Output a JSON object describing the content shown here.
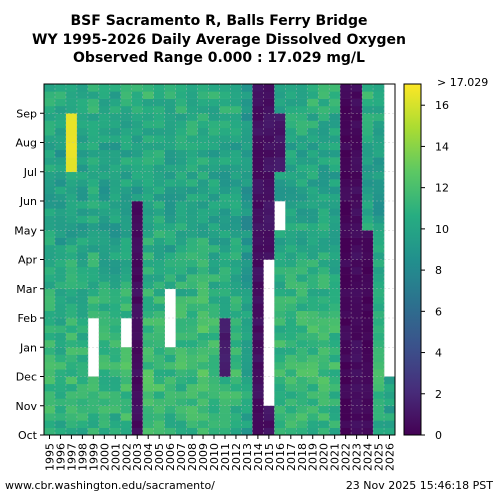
{
  "chart_data": {
    "type": "heatmap",
    "title_lines": [
      "BSF Sacramento R, Balls Ferry Bridge",
      "WY 1995-2026 Daily Average Dissolved Oxygen",
      "Observed Range 0.000 : 17.029 mg/L"
    ],
    "x_categories": [
      "1995",
      "1996",
      "1997",
      "1998",
      "1999",
      "2000",
      "2001",
      "2002",
      "2003",
      "2004",
      "2005",
      "2006",
      "2007",
      "2008",
      "2009",
      "2010",
      "2011",
      "2012",
      "2013",
      "2014",
      "2015",
      "2016",
      "2017",
      "2018",
      "2019",
      "2020",
      "2021",
      "2022",
      "2023",
      "2024",
      "2025",
      "2026"
    ],
    "y_months": [
      "Oct",
      "Nov",
      "Dec",
      "Jan",
      "Feb",
      "Mar",
      "Apr",
      "May",
      "Jun",
      "Jul",
      "Aug",
      "Sep"
    ],
    "xlabel": "",
    "ylabel": "",
    "colorbar": {
      "min": 0,
      "max": 17.029,
      "ticks": [
        0,
        2,
        4,
        6,
        8,
        10,
        12,
        14,
        16
      ],
      "top_label": "> 17.029",
      "colormap": "viridis"
    },
    "typical_value_by_water_year": [
      10.6,
      10.2,
      10.6,
      10.3,
      10.8,
      10.4,
      10.2,
      10.8,
      10.6,
      10.9,
      10.9,
      10.4,
      10.6,
      10.8,
      11.1,
      10.7,
      10.6,
      10.5,
      9.5,
      3.0,
      2.8,
      10.5,
      10.6,
      10.7,
      10.8,
      10.8,
      10.6,
      1.0,
      1.5,
      10.7,
      10.3,
      9.5
    ],
    "low_do_periods": [
      {
        "water_year": "2014",
        "months": "Oct-Sep",
        "approx_value": 0.7
      },
      {
        "water_year": "2015",
        "months": "Oct-Sep",
        "approx_value": 0.8
      },
      {
        "water_year": "2022",
        "months": "Oct-Sep",
        "approx_value": 0.3
      },
      {
        "water_year": "2023",
        "months": "Oct-Sep",
        "approx_value": 0.5
      },
      {
        "water_year": "2003",
        "months": "Oct-May",
        "approx_value": 0.6
      },
      {
        "water_year": "2013",
        "months": "Apr-Oct",
        "approx_value": 0.9
      },
      {
        "water_year": "2024",
        "months": "Oct-Apr",
        "approx_value": 0.4
      },
      {
        "water_year": "2016",
        "months": "Jul-Aug",
        "approx_value": 1.0
      },
      {
        "water_year": "2011",
        "months": "Dec-Jan",
        "approx_value": 1.2
      }
    ],
    "high_do_periods": [
      {
        "water_year": "1997",
        "months": "Jul-Aug",
        "approx_value": 16.5
      }
    ],
    "missing_periods": [
      {
        "water_year": "2026",
        "months": "Dec-Sep"
      },
      {
        "water_year": "2015",
        "months": "Nov-Mar"
      },
      {
        "water_year": "1999",
        "months": "Dec-Jan"
      },
      {
        "water_year": "2006",
        "months": "Jan-Feb"
      },
      {
        "water_year": "2002",
        "months": "Jan"
      },
      {
        "water_year": "2016",
        "months": "May"
      }
    ],
    "grid": true
  },
  "footer": {
    "left": "www.cbr.washington.edu/sacramento/",
    "right": "23 Nov 2025 15:46:18 PST"
  }
}
